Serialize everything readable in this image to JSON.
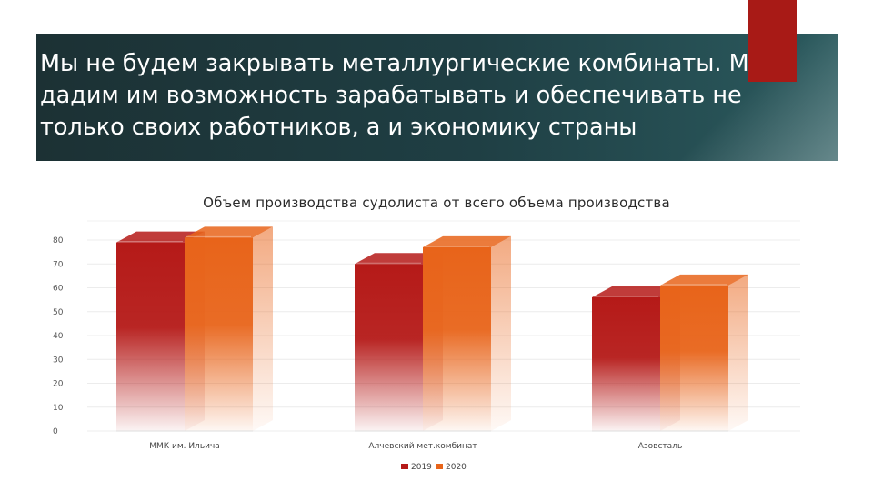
{
  "slide": {
    "title": "Мы не будем закрывать металлургические комбинаты. Мы дадим им возможность зарабатывать и обеспечивать не только своих работников, а и экономику страны"
  },
  "colors": {
    "banner": "#1f3f44",
    "accent": "#a81a16",
    "series_2019": "#b51a18",
    "series_2020": "#e8641a"
  },
  "chart_data": {
    "type": "bar",
    "title": "Объем производства судолиста от всего объема производства",
    "categories": [
      "ММК им. Ильича",
      "Алчевский мет.комбинат",
      "Азовсталь"
    ],
    "series": [
      {
        "name": "2019",
        "values": [
          79,
          70,
          56
        ]
      },
      {
        "name": "2020",
        "values": [
          81,
          77,
          61
        ]
      }
    ],
    "y_ticks": [
      "0",
      "10",
      "20",
      "30",
      "40",
      "50",
      "60",
      "70",
      "80"
    ],
    "ylim": [
      0,
      88
    ],
    "grid": true,
    "legend": "bottom",
    "style": "3d"
  }
}
